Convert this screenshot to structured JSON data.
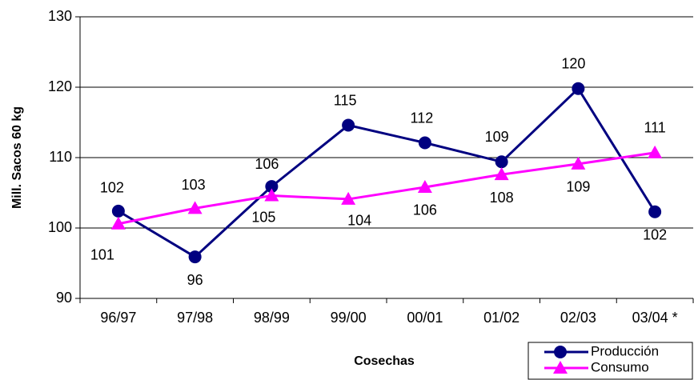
{
  "chart_data": {
    "type": "line",
    "x_label": "Cosechas",
    "y_label": "Mill. Sacos 60 kg",
    "categories": [
      "96/97",
      "97/98",
      "98/99",
      "99/00",
      "00/01",
      "01/02",
      "02/03",
      "03/04 *"
    ],
    "series": [
      {
        "name": "Producción",
        "color": "#000080",
        "marker": "circle",
        "values": [
          102.4,
          95.9,
          105.9,
          114.6,
          112.1,
          109.4,
          119.8,
          102.3
        ],
        "value_labels": [
          "102",
          "96",
          "106",
          "115",
          "112",
          "109",
          "120",
          "102"
        ]
      },
      {
        "name": "Consumo",
        "color": "#ff00ff",
        "marker": "triangle",
        "values": [
          100.6,
          102.8,
          104.6,
          104.1,
          105.8,
          107.6,
          109.1,
          110.7
        ],
        "value_labels": [
          "101",
          "103",
          "105",
          "104",
          "106",
          "108",
          "109",
          "111"
        ]
      }
    ],
    "ylim": [
      90,
      130
    ],
    "yticks": [
      90,
      100,
      110,
      120,
      130
    ],
    "grid": true,
    "legend": "bottom-right"
  }
}
